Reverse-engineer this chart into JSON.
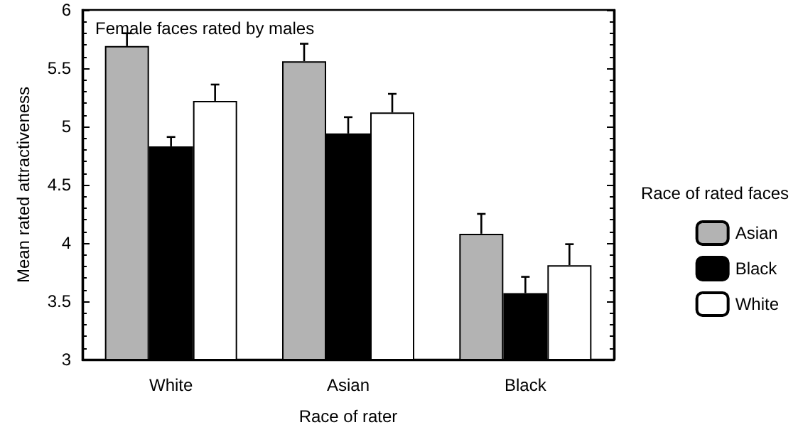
{
  "chart_data": {
    "type": "bar",
    "title": "Female faces rated by males",
    "xlabel": "Race of rater",
    "ylabel": "Mean rated attractiveness",
    "legend_title": "Race of rated faces",
    "categories": [
      "White",
      "Asian",
      "Black"
    ],
    "series": [
      {
        "name": "Asian",
        "color": "#b3b3b3",
        "values": [
          5.69,
          5.56,
          4.08
        ],
        "errors": [
          [
            5.69,
            5.8
          ],
          [
            5.56,
            5.71
          ],
          [
            4.08,
            4.25
          ]
        ]
      },
      {
        "name": "Black",
        "color": "#000000",
        "values": [
          4.83,
          4.94,
          3.57
        ],
        "errors": [
          [
            4.83,
            4.91
          ],
          [
            4.94,
            5.08
          ],
          [
            3.57,
            3.71
          ]
        ]
      },
      {
        "name": "White",
        "color": "#ffffff",
        "values": [
          5.22,
          5.12,
          3.81
        ],
        "errors": [
          [
            5.22,
            5.36
          ],
          [
            5.12,
            5.28
          ],
          [
            3.81,
            3.99
          ]
        ]
      }
    ],
    "ylim": [
      3,
      6
    ],
    "yticks": [
      3,
      3.5,
      4,
      4.5,
      5,
      5.5,
      6
    ],
    "grid": false,
    "legend": "right"
  }
}
